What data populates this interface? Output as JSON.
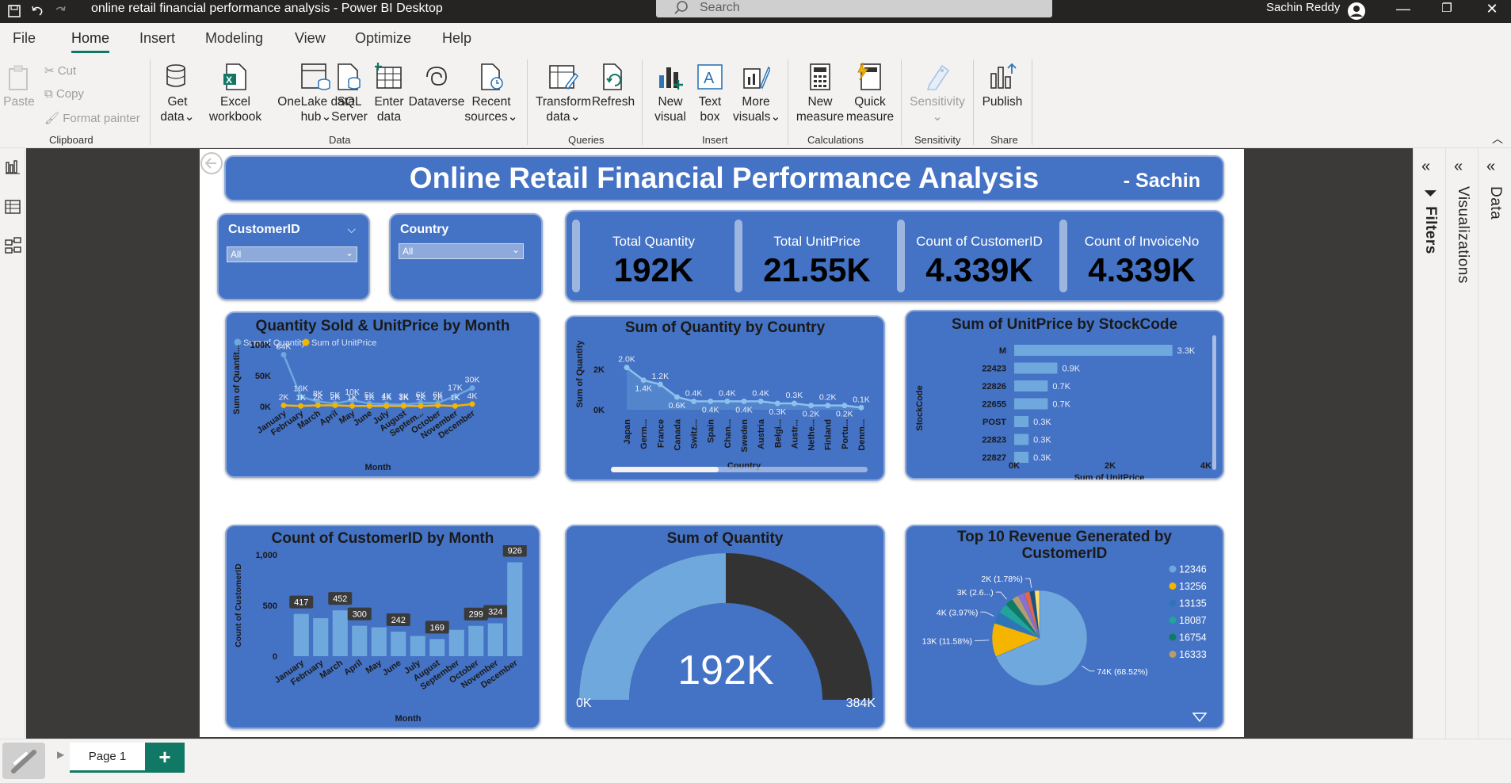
{
  "window": {
    "title": "online retail financial performance analysis - Power BI Desktop",
    "search_placeholder": "Search",
    "user": "Sachin Reddy",
    "minimize": "—",
    "restore": "❐",
    "close": "✕"
  },
  "menu": [
    "File",
    "Home",
    "Insert",
    "Modeling",
    "View",
    "Optimize",
    "Help"
  ],
  "ribbon": {
    "clipboard": {
      "paste": "Paste",
      "cut": "Cut",
      "copy": "Copy",
      "format_painter": "Format painter",
      "label": "Clipboard"
    },
    "data": {
      "get_data": [
        "Get",
        "data"
      ],
      "excel": [
        "Excel",
        "workbook"
      ],
      "onelake": [
        "OneLake data",
        "hub"
      ],
      "sql": [
        "SQL",
        "Server"
      ],
      "enter": [
        "Enter",
        "data"
      ],
      "dataverse": "Dataverse",
      "recent": [
        "Recent",
        "sources"
      ],
      "label": "Data"
    },
    "queries": {
      "transform": [
        "Transform",
        "data"
      ],
      "refresh": "Refresh",
      "label": "Queries"
    },
    "insert": {
      "new_visual": [
        "New",
        "visual"
      ],
      "text_box": [
        "Text",
        "box"
      ],
      "more_visuals": [
        "More",
        "visuals"
      ],
      "label": "Insert"
    },
    "calculations": {
      "new_measure": [
        "New",
        "measure"
      ],
      "quick_measure": [
        "Quick",
        "measure"
      ],
      "label": "Calculations"
    },
    "sensitivity": {
      "sensitivity": "Sensitivity",
      "label": "Sensitivity"
    },
    "share": {
      "publish": "Publish",
      "label": "Share"
    }
  },
  "panes": {
    "filters": "Filters",
    "visualizations": "Visualizations",
    "data": "Data"
  },
  "report": {
    "title": "Online Retail Financial Performance Analysis",
    "author": "- Sachin",
    "slicers": [
      {
        "label": "CustomerID",
        "value": "All"
      },
      {
        "label": "Country",
        "value": "All"
      }
    ],
    "kpis": [
      {
        "label": "Total Quantity",
        "value": "192K"
      },
      {
        "label": "Total UnitPrice",
        "value": "21.55K"
      },
      {
        "label": "Count of CustomerID",
        "value": "4.339K"
      },
      {
        "label": "Count of InvoiceNo",
        "value": "4.339K"
      }
    ],
    "gauge": {
      "title": "Sum of Quantity",
      "value_label": "192K",
      "min_label": "0K",
      "max_label": "384K"
    }
  },
  "chart_data": [
    {
      "id": "qty-unitprice-month",
      "type": "line",
      "title": "Quantity Sold & UnitPrice by Month",
      "xlabel": "Month",
      "ylabel": "Sum of Quantit...",
      "legend": "top-left",
      "categories": [
        "January",
        "February",
        "March",
        "April",
        "May",
        "June",
        "July",
        "August",
        "Septem...",
        "October",
        "November",
        "December"
      ],
      "yticks": [
        "100K",
        "50K",
        "0K"
      ],
      "ylim": [
        0,
        100000
      ],
      "series": [
        {
          "name": "Sum of Quantity",
          "color": "#6fa8dc",
          "values": [
            84000,
            16000,
            8000,
            5000,
            10000,
            5000,
            4000,
            3000,
            6000,
            6000,
            17000,
            30000
          ],
          "labels": [
            "84K",
            "16K",
            "8K",
            "5K",
            "10K",
            "5K",
            "4K",
            "3K",
            "6K",
            "6K",
            "17K",
            "30K"
          ]
        },
        {
          "name": "Sum of UnitPrice",
          "color": "#f4b400",
          "values": [
            2000,
            1000,
            2000,
            2000,
            1000,
            1000,
            1000,
            1000,
            1000,
            2000,
            1000,
            4000
          ],
          "labels": [
            "2K",
            "1K",
            "2K",
            "2K",
            "1K",
            "1K",
            "1K",
            "1K",
            "1K",
            "2K",
            "1K",
            "4K"
          ]
        }
      ]
    },
    {
      "id": "qty-country",
      "type": "area",
      "title": "Sum of Quantity by Country",
      "xlabel": "Country",
      "ylabel": "Sum of Quantity",
      "yticks": [
        "2K",
        "0K"
      ],
      "ylim": [
        0,
        2000
      ],
      "categories": [
        "Japan",
        "Germ...",
        "France",
        "Canada",
        "Switz...",
        "Spain",
        "Chan...",
        "Sweden",
        "Austria",
        "Belgi...",
        "Austr...",
        "Nethe...",
        "Finland",
        "Portu...",
        "Denm..."
      ],
      "values": [
        2000,
        1400,
        1200,
        600,
        400,
        400,
        400,
        400,
        400,
        300,
        300,
        200,
        200,
        200,
        100
      ],
      "labels": [
        "2.0K",
        "1.4K",
        "1.2K",
        "0.6K",
        "0.4K",
        "0.4K",
        "0.4K",
        "0.4K",
        "0.4K",
        "0.3K",
        "0.3K",
        "0.2K",
        "0.2K",
        "0.2K",
        "0.1K"
      ]
    },
    {
      "id": "unitprice-stockcode",
      "type": "bar",
      "title": "Sum of UnitPrice by StockCode",
      "xlabel": "Sum of UnitPrice",
      "ylabel": "StockCode",
      "xticks": [
        "0K",
        "2K",
        "4K"
      ],
      "xlim": [
        0,
        4000
      ],
      "categories": [
        "M",
        "22423",
        "22826",
        "22655",
        "POST",
        "22823",
        "22827"
      ],
      "values": [
        3300,
        900,
        700,
        700,
        300,
        300,
        300
      ],
      "labels": [
        "3.3K",
        "0.9K",
        "0.7K",
        "0.7K",
        "0.3K",
        "0.3K",
        "0.3K"
      ]
    },
    {
      "id": "customer-count-month",
      "type": "bar",
      "title": "Count of CustomerID by Month",
      "xlabel": "Month",
      "ylabel": "Count of CustomerID",
      "yticks": [
        "1,000",
        "500",
        "0"
      ],
      "ylim": [
        0,
        1000
      ],
      "categories": [
        "January",
        "February",
        "March",
        "April",
        "May",
        "June",
        "July",
        "August",
        "September",
        "October",
        "November",
        "December"
      ],
      "values": [
        417,
        375,
        452,
        300,
        285,
        242,
        200,
        169,
        260,
        299,
        324,
        926
      ],
      "labels": [
        "417",
        "",
        "452",
        "300",
        "",
        "242",
        "",
        "169",
        "",
        "299",
        "324",
        "926"
      ]
    },
    {
      "id": "top10-revenue",
      "type": "pie",
      "title": "Top 10 Revenue Generated by CustomerID",
      "legend": "right",
      "slices": [
        {
          "name": "12346",
          "value": 74000,
          "color": "#6fa8dc",
          "label": "74K (68.52%)"
        },
        {
          "name": "13256",
          "value": 12500,
          "color": "#f4b400",
          "label": "13K (11.58%)"
        },
        {
          "name": "13135",
          "value": 4300,
          "color": "#2e75b6",
          "label": "4K (3.97%)"
        },
        {
          "name": "18087",
          "value": 3600,
          "color": "#1fa59a",
          "label": ""
        },
        {
          "name": "16754",
          "value": 3000,
          "color": "#0e7c61",
          "label": "3K (2.6...)"
        },
        {
          "name": "16333",
          "value": 2600,
          "color": "#b89c6b",
          "label": ""
        },
        {
          "name": "",
          "value": 2300,
          "color": "#8e6fd1",
          "label": ""
        },
        {
          "name": "",
          "value": 2000,
          "color": "#e8663a",
          "label": ""
        },
        {
          "name": "",
          "value": 1900,
          "color": "#1f4e79",
          "label": "2K (1.78%)"
        },
        {
          "name": "",
          "value": 1800,
          "color": "#ffe066",
          "label": ""
        }
      ]
    }
  ],
  "tabs": {
    "page1": "Page 1",
    "add": "+"
  }
}
